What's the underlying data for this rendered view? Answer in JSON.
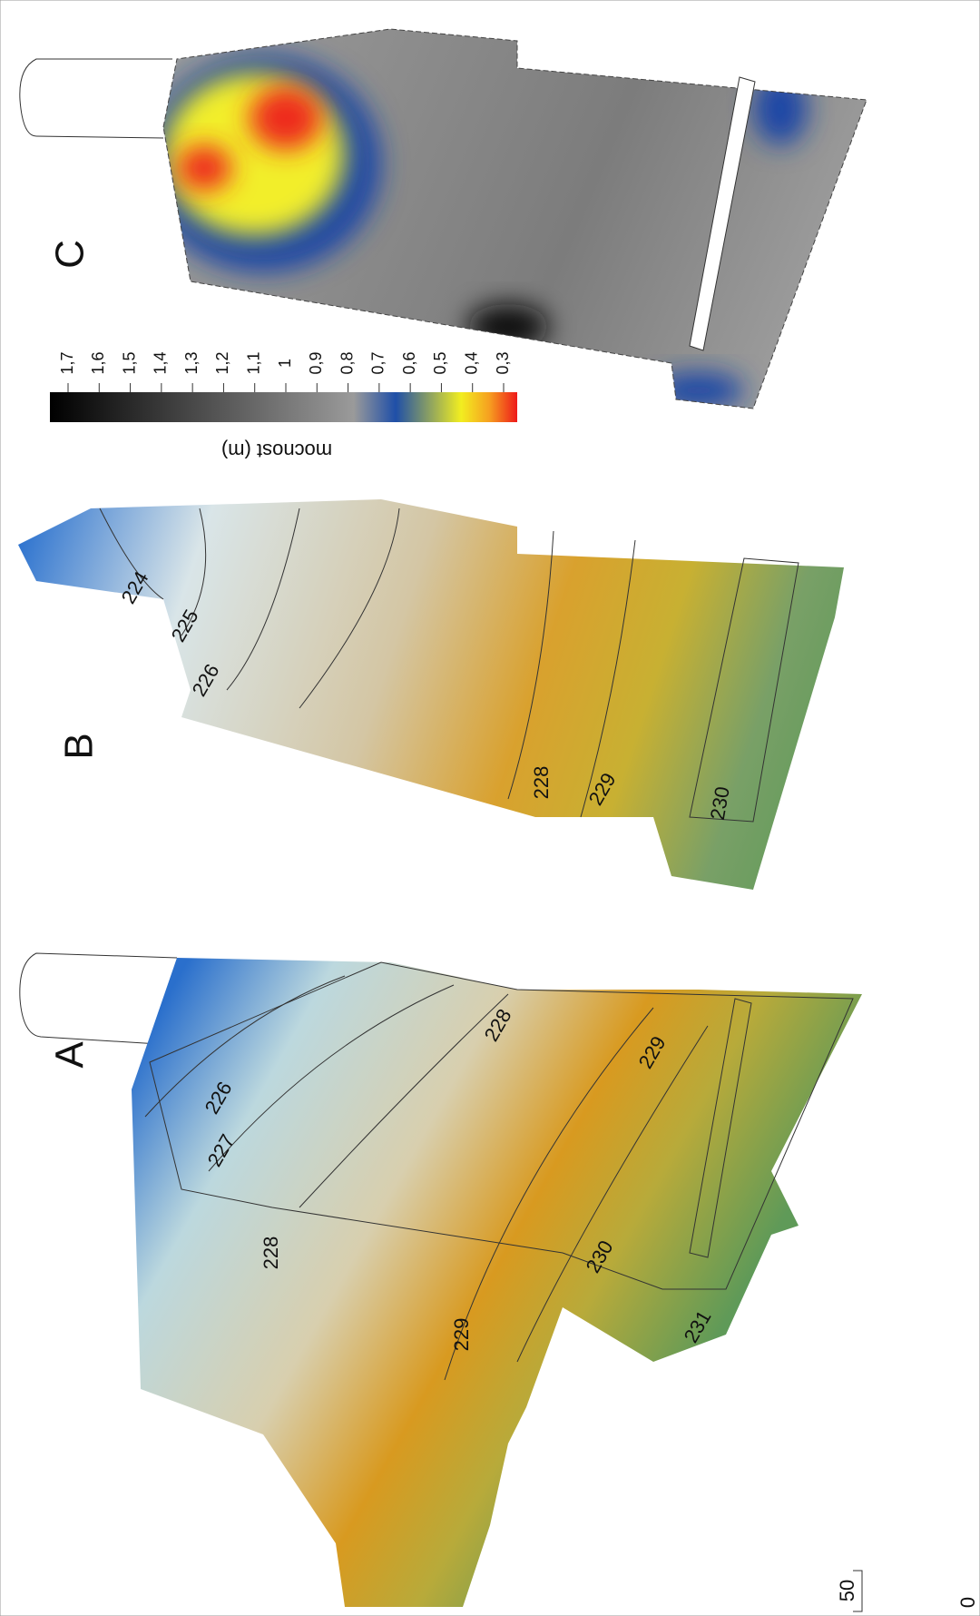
{
  "panels": [
    {
      "label": "C"
    },
    {
      "label": "B",
      "contours": [
        224,
        225,
        226,
        228,
        229,
        230
      ]
    },
    {
      "label": "A",
      "contours": [
        226,
        227,
        228,
        228,
        229,
        229,
        230,
        231
      ]
    }
  ],
  "legend": {
    "title": "mocnost (m)",
    "ticks": [
      "1,7",
      "1,6",
      "1,5",
      "1,4",
      "1,3",
      "1,2",
      "1,1",
      "1",
      "0,9",
      "0,8",
      "0,7",
      "0,6",
      "0,5",
      "0,4",
      "0,3"
    ]
  },
  "scale_bar": {
    "labels": [
      "0",
      "50"
    ]
  }
}
